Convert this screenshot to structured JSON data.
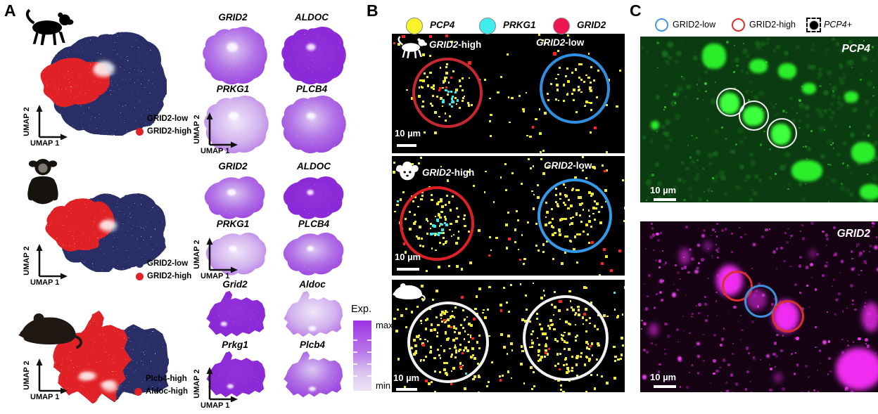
{
  "figure": {
    "axis_x": "UMAP 1",
    "axis_y": "UMAP 2"
  },
  "panelA": {
    "label": "A",
    "colorbar": {
      "title": "Exp.",
      "max_label": "max",
      "min_label": "min",
      "color_max": "#9d33e6",
      "color_min": "#ece5f4"
    },
    "colors": {
      "low_cluster": "#2a2f66",
      "high_cluster": "#e02227"
    },
    "rows": [
      {
        "species": "macaque",
        "legend": [
          {
            "label": "GRID2-low",
            "color": "#2a2f66"
          },
          {
            "label": "GRID2-high",
            "color": "#e02227"
          }
        ],
        "features": [
          "GRID2",
          "ALDOC",
          "PRKG1",
          "PLCB4"
        ]
      },
      {
        "species": "marmoset",
        "legend": [
          {
            "label": "GRID2-low",
            "color": "#2a2f66"
          },
          {
            "label": "GRID2-high",
            "color": "#e02227"
          }
        ],
        "features": [
          "GRID2",
          "ALDOC",
          "PRKG1",
          "PLCB4"
        ]
      },
      {
        "species": "mouse",
        "legend": [
          {
            "label": "Plcb4-high",
            "color": "#2a2f66"
          },
          {
            "label": "Aldoc-high",
            "color": "#e02227"
          }
        ],
        "features": [
          "Grid2",
          "Aldoc",
          "Prkg1",
          "Plcb4"
        ]
      }
    ]
  },
  "panelB": {
    "label": "B",
    "legend": [
      {
        "gene": "PCP4",
        "color": "#f9f32b"
      },
      {
        "gene": "PRKG1",
        "color": "#40eded"
      },
      {
        "gene": "GRID2",
        "color": "#ee1550"
      }
    ],
    "rows": [
      {
        "species": "macaque",
        "high_gene": "GRID2",
        "high_suffix": "-high",
        "low_gene": "GRID2",
        "low_suffix": "-low",
        "scalebar": "10 µm"
      },
      {
        "species": "marmoset",
        "high_gene": "GRID2",
        "high_suffix": "-high",
        "low_gene": "GRID2",
        "low_suffix": "-low",
        "scalebar": "10 µm"
      },
      {
        "species": "mouse",
        "scalebar": "10 µm"
      }
    ]
  },
  "panelC": {
    "label": "C",
    "legend": [
      {
        "label": "GRID2-low",
        "color": "#4695e8"
      },
      {
        "label": "GRID2-high",
        "color": "#d93030"
      },
      {
        "label": "PCP4+",
        "color": "#000000"
      }
    ],
    "images": [
      {
        "title": "PCP4",
        "scalebar": "10 µm",
        "channel_color": "#2bee2b"
      },
      {
        "title": "GRID2",
        "scalebar": "10 µm",
        "channel_color": "#ef2cef"
      }
    ]
  }
}
